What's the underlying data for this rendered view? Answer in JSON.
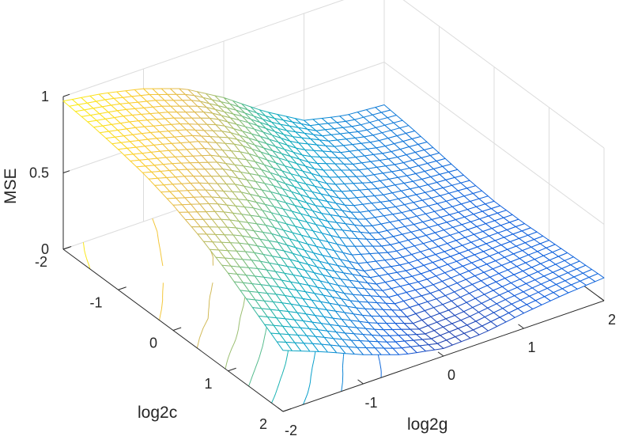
{
  "chart_data": {
    "type": "surface",
    "style": "mesh surface with contour projection on the floor",
    "colormap": "parula",
    "xlabel": "log2g",
    "ylabel": "log2c",
    "zlabel": "MSE",
    "xlim": [
      -2,
      2
    ],
    "ylim": [
      -2,
      2
    ],
    "zlim": [
      0,
      1
    ],
    "xticks": [
      "-2",
      "-1",
      "0",
      "1",
      "2"
    ],
    "yticks": [
      "-2",
      "-1",
      "0",
      "1",
      "2"
    ],
    "zticks": [
      "0",
      "0.5",
      "1"
    ],
    "grid": true,
    "x": [
      -2,
      -1.5,
      -1,
      -0.5,
      0,
      0.5,
      1,
      1.5,
      2
    ],
    "y": [
      -2,
      -1.5,
      -1,
      -0.5,
      0,
      0.5,
      1,
      1.5,
      2
    ],
    "z": [
      [
        0.97,
        0.93,
        0.87,
        0.78,
        0.63,
        0.45,
        0.3,
        0.24,
        0.22
      ],
      [
        0.95,
        0.9,
        0.83,
        0.74,
        0.58,
        0.4,
        0.28,
        0.22,
        0.2
      ],
      [
        0.92,
        0.86,
        0.79,
        0.68,
        0.5,
        0.33,
        0.24,
        0.19,
        0.17
      ],
      [
        0.88,
        0.81,
        0.72,
        0.58,
        0.4,
        0.25,
        0.19,
        0.16,
        0.14
      ],
      [
        0.82,
        0.74,
        0.62,
        0.46,
        0.3,
        0.18,
        0.15,
        0.13,
        0.12
      ],
      [
        0.74,
        0.64,
        0.5,
        0.33,
        0.18,
        0.13,
        0.12,
        0.12,
        0.12
      ],
      [
        0.64,
        0.52,
        0.38,
        0.23,
        0.12,
        0.1,
        0.11,
        0.12,
        0.13
      ],
      [
        0.52,
        0.4,
        0.27,
        0.15,
        0.06,
        0.07,
        0.1,
        0.12,
        0.14
      ],
      [
        0.4,
        0.3,
        0.19,
        0.1,
        0.05,
        0.06,
        0.1,
        0.13,
        0.15
      ]
    ]
  }
}
